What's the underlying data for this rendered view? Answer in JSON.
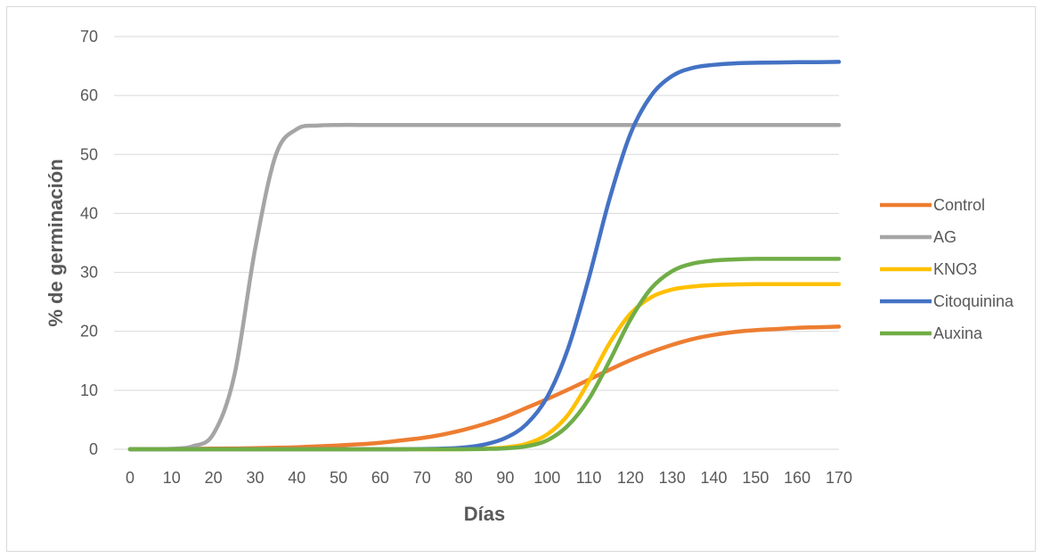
{
  "chart_data": {
    "type": "line",
    "title": "",
    "xlabel": "Días",
    "ylabel": "% de germinación",
    "xlim": [
      0,
      170
    ],
    "ylim": [
      0,
      70
    ],
    "x_ticks": [
      0,
      10,
      20,
      30,
      40,
      50,
      60,
      70,
      80,
      90,
      100,
      110,
      120,
      130,
      140,
      150,
      160,
      170
    ],
    "y_ticks": [
      0,
      10,
      20,
      30,
      40,
      50,
      60,
      70
    ],
    "grid": "horizontal",
    "legend_position": "right",
    "x": [
      0,
      5,
      10,
      15,
      20,
      25,
      30,
      35,
      40,
      45,
      50,
      55,
      60,
      65,
      70,
      75,
      80,
      85,
      90,
      95,
      100,
      105,
      110,
      115,
      120,
      125,
      130,
      135,
      140,
      145,
      150,
      155,
      160,
      165,
      170
    ],
    "series": [
      {
        "name": "Control",
        "color": "#ED7D31",
        "values": [
          0.03,
          0.04,
          0.05,
          0.07,
          0.1,
          0.13,
          0.18,
          0.25,
          0.35,
          0.5,
          0.65,
          0.85,
          1.1,
          1.5,
          1.9,
          2.5,
          3.3,
          4.3,
          5.5,
          7.0,
          8.5,
          10.1,
          11.8,
          13.5,
          15.1,
          16.5,
          17.7,
          18.7,
          19.4,
          19.9,
          20.2,
          20.4,
          20.6,
          20.7,
          20.8
        ]
      },
      {
        "name": "AG",
        "color": "#A5A5A5",
        "values": [
          0.0,
          0.02,
          0.08,
          0.5,
          2.6,
          12.5,
          34.0,
          50.0,
          54.3,
          54.9,
          55.0,
          55.0,
          55.0,
          55.0,
          55.0,
          55.0,
          55.0,
          55.0,
          55.0,
          55.0,
          55.0,
          55.0,
          55.0,
          55.0,
          55.0,
          55.0,
          55.0,
          55.0,
          55.0,
          55.0,
          55.0,
          55.0,
          55.0,
          55.0,
          55.0
        ]
      },
      {
        "name": "KNO3",
        "color": "#FFC000",
        "values": [
          0,
          0,
          0,
          0,
          0,
          0,
          0,
          0,
          0,
          0,
          0,
          0,
          0,
          0,
          0,
          0,
          0.02,
          0.1,
          0.3,
          0.9,
          2.5,
          5.8,
          11.5,
          18.0,
          23.0,
          25.8,
          27.1,
          27.6,
          27.85,
          27.95,
          28.0,
          28.0,
          28.0,
          28.0,
          28.0
        ]
      },
      {
        "name": "Citoquinina",
        "color": "#4472C4",
        "values": [
          0,
          0,
          0,
          0,
          0,
          0,
          0,
          0,
          0,
          0,
          0,
          0,
          0,
          0,
          0.05,
          0.1,
          0.3,
          0.8,
          1.9,
          4.2,
          8.8,
          17.0,
          29.0,
          42.5,
          53.5,
          60.0,
          63.3,
          64.7,
          65.2,
          65.45,
          65.55,
          65.6,
          65.65,
          65.65,
          65.7
        ]
      },
      {
        "name": "Auxina",
        "color": "#70AD47",
        "values": [
          0,
          0,
          0,
          0,
          0,
          0,
          0,
          0,
          0,
          0,
          0,
          0,
          0,
          0,
          0,
          0,
          0,
          0.05,
          0.15,
          0.5,
          1.5,
          4.0,
          8.5,
          15.0,
          22.0,
          27.3,
          30.2,
          31.5,
          32.0,
          32.2,
          32.3,
          32.3,
          32.3,
          32.3,
          32.3
        ]
      }
    ]
  }
}
